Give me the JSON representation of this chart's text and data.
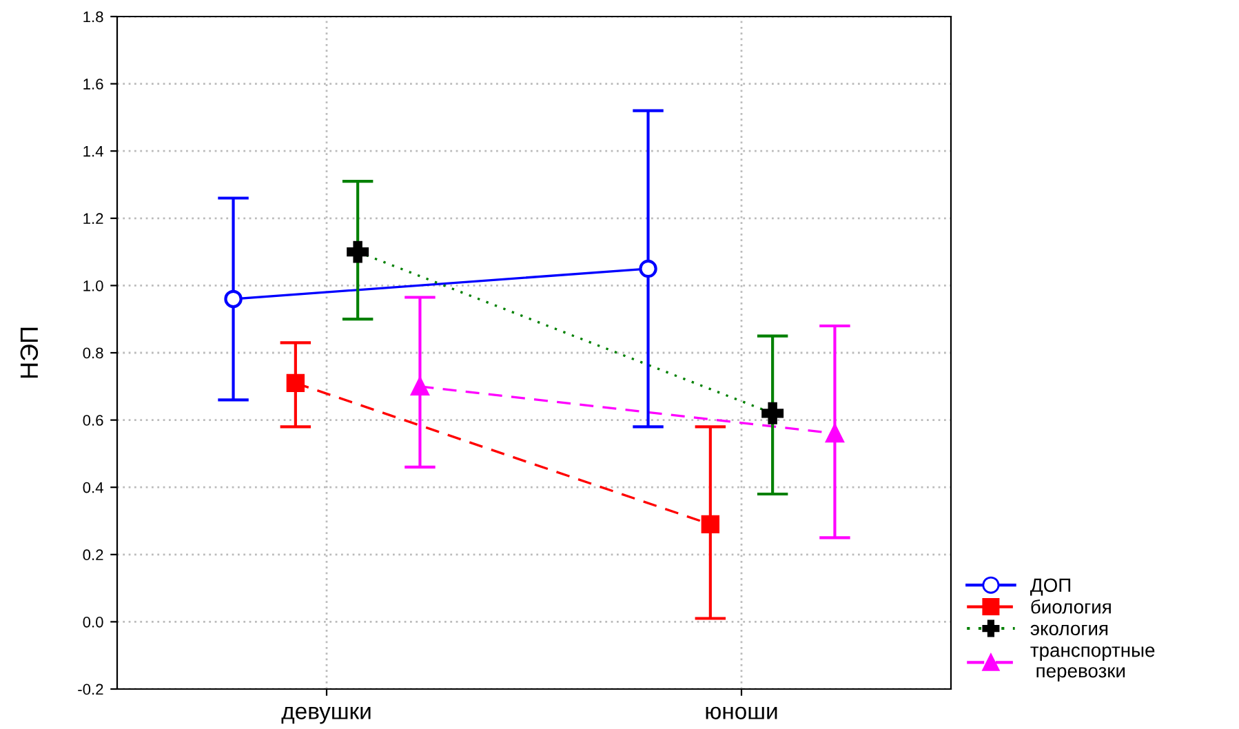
{
  "chart_data": {
    "type": "line",
    "ylabel": "НЭП",
    "categories": [
      "девушки",
      "юноши"
    ],
    "ylim": [
      -0.2,
      1.8
    ],
    "yticks": [
      {
        "value": -0.2,
        "label": "-0.2"
      },
      {
        "value": 0,
        "label": "0.0"
      },
      0.2,
      0.4,
      0.6,
      0.8,
      {
        "value": 1,
        "label": "1.0"
      },
      1.2,
      1.4,
      1.6,
      1.8
    ],
    "grid": true,
    "legend": "bottom right",
    "series": [
      {
        "name": "ДОП",
        "color": "#0000ff",
        "values": [
          0.96,
          1.05
        ],
        "errors": [
          [
            0.66,
            1.26
          ],
          [
            0.58,
            1.52
          ]
        ],
        "marker": "circle",
        "line_style": "solid"
      },
      {
        "name": "биология",
        "color": "#ff0000",
        "values": [
          0.71,
          0.29
        ],
        "errors": [
          [
            0.58,
            0.83
          ],
          [
            0.01,
            0.58
          ]
        ],
        "marker": "square",
        "line_style": "dashed"
      },
      {
        "name": "экология",
        "color": "#008000",
        "values": [
          1.1,
          0.62
        ],
        "errors": [
          [
            0.9,
            1.31
          ],
          [
            0.38,
            0.85
          ]
        ],
        "marker": "cross",
        "line_style": "dotted"
      },
      {
        "name": "транспортные\n перевозки",
        "color": "#ff00ff",
        "values": [
          0.7,
          0.56
        ],
        "errors": [
          [
            0.46,
            0.965
          ],
          [
            0.25,
            0.88
          ]
        ],
        "marker": "triangle",
        "line_style": "dashed"
      }
    ]
  }
}
